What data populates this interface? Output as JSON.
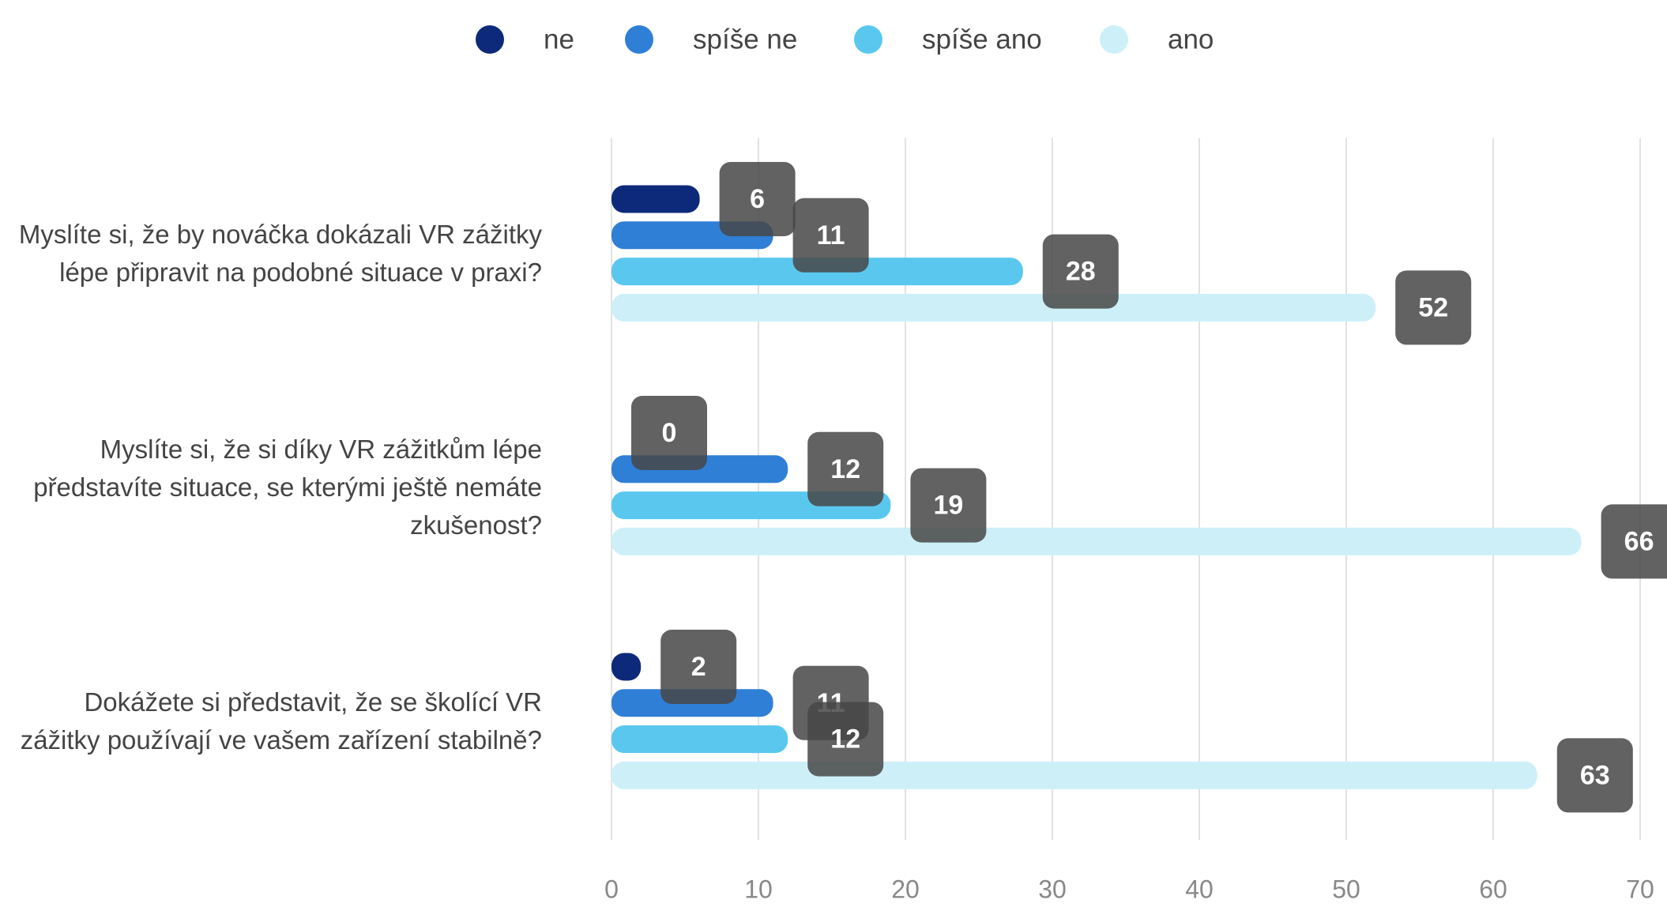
{
  "chart_data": {
    "type": "bar",
    "orientation": "horizontal",
    "categories": [
      "Myslíte si, že by nováčka dokázali VR zážitky lépe připravit na podobné situace v praxi?",
      "Myslíte si, že si díky VR zážitkům lépe představíte situace, se kterými ještě nemáte zkušenost?",
      "Dokážete si představit, že se školící VR zážitky používají ve vašem zařízení stabilně?"
    ],
    "series": [
      {
        "name": "ne",
        "color": "#0d2a7a",
        "values": [
          6,
          0,
          2
        ]
      },
      {
        "name": "spíše ne",
        "color": "#2f7fd6",
        "values": [
          11,
          12,
          11
        ]
      },
      {
        "name": "spíše ano",
        "color": "#5ac8ee",
        "values": [
          28,
          19,
          12
        ]
      },
      {
        "name": "ano",
        "color": "#cdf0f8",
        "values": [
          52,
          66,
          63
        ]
      }
    ],
    "xlim": [
      0,
      70
    ],
    "xticks": [
      0,
      10,
      20,
      30,
      40,
      50,
      60,
      70
    ],
    "grid": true,
    "legend": "top",
    "data_labels": true
  }
}
